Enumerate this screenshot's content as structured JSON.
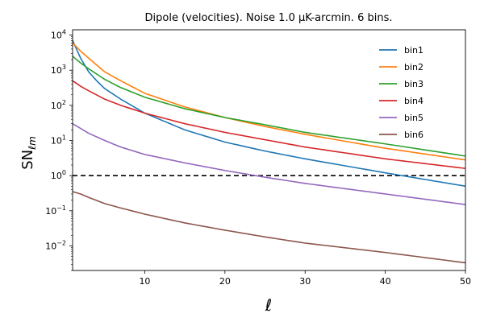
{
  "chart_data": {
    "type": "line",
    "title": "Dipole (velocities). Noise 1.0 μK-arcmin. 6 bins.",
    "xlabel": "ℓ",
    "ylabel": "SN",
    "ylabel_sub": "ℓm",
    "yscale": "log",
    "xlim": [
      1,
      50
    ],
    "ylim_exp": [
      -2.7,
      4.15
    ],
    "xticks": [
      10,
      20,
      30,
      40,
      50
    ],
    "xtick_labels": [
      "10",
      "20",
      "30",
      "40",
      "50"
    ],
    "yticks_exp": [
      -2,
      -1,
      0,
      1,
      2,
      3,
      4
    ],
    "ytick_labels": [
      {
        "base": "10",
        "exp": "−2"
      },
      {
        "base": "10",
        "exp": "−1"
      },
      {
        "base": "10",
        "exp": "0"
      },
      {
        "base": "10",
        "exp": "1"
      },
      {
        "base": "10",
        "exp": "2"
      },
      {
        "base": "10",
        "exp": "3"
      },
      {
        "base": "10",
        "exp": "4"
      }
    ],
    "reference_line": {
      "y": 1.0,
      "style": "dashed",
      "color": "#000000"
    },
    "legend_position": "top-right",
    "series": [
      {
        "name": "bin1",
        "color": "#1f77b4",
        "points": [
          [
            1,
            7000
          ],
          [
            2,
            2200
          ],
          [
            3,
            900
          ],
          [
            4,
            500
          ],
          [
            5,
            300
          ],
          [
            7,
            150
          ],
          [
            10,
            60
          ],
          [
            15,
            20
          ],
          [
            20,
            9
          ],
          [
            25,
            5
          ],
          [
            30,
            3
          ],
          [
            40,
            1.2
          ],
          [
            50,
            0.5
          ]
        ]
      },
      {
        "name": "bin2",
        "color": "#ff7f0e",
        "points": [
          [
            1,
            6000
          ],
          [
            2,
            3500
          ],
          [
            3,
            2200
          ],
          [
            5,
            900
          ],
          [
            7,
            500
          ],
          [
            10,
            220
          ],
          [
            15,
            90
          ],
          [
            20,
            45
          ],
          [
            25,
            25
          ],
          [
            30,
            15
          ],
          [
            40,
            6
          ],
          [
            50,
            2.8
          ]
        ]
      },
      {
        "name": "bin3",
        "color": "#2ca02c",
        "points": [
          [
            1,
            2500
          ],
          [
            2,
            1600
          ],
          [
            3,
            1100
          ],
          [
            5,
            550
          ],
          [
            7,
            320
          ],
          [
            10,
            170
          ],
          [
            15,
            80
          ],
          [
            20,
            45
          ],
          [
            25,
            28
          ],
          [
            30,
            17
          ],
          [
            40,
            8
          ],
          [
            50,
            3.6
          ]
        ]
      },
      {
        "name": "bin4",
        "color": "#d62728",
        "points": [
          [
            1,
            500
          ],
          [
            2,
            350
          ],
          [
            3,
            260
          ],
          [
            5,
            150
          ],
          [
            7,
            100
          ],
          [
            10,
            60
          ],
          [
            15,
            30
          ],
          [
            20,
            17
          ],
          [
            25,
            10.5
          ],
          [
            30,
            6.5
          ],
          [
            40,
            3
          ],
          [
            50,
            1.6
          ]
        ]
      },
      {
        "name": "bin5",
        "color": "#9467bd",
        "points": [
          [
            1,
            30
          ],
          [
            2,
            22
          ],
          [
            3,
            16
          ],
          [
            5,
            10
          ],
          [
            7,
            6.5
          ],
          [
            10,
            4
          ],
          [
            15,
            2.3
          ],
          [
            20,
            1.4
          ],
          [
            25,
            0.9
          ],
          [
            30,
            0.6
          ],
          [
            40,
            0.3
          ],
          [
            50,
            0.15
          ]
        ]
      },
      {
        "name": "bin6",
        "color": "#8c564b",
        "points": [
          [
            1,
            0.35
          ],
          [
            2,
            0.3
          ],
          [
            3,
            0.24
          ],
          [
            5,
            0.16
          ],
          [
            7,
            0.12
          ],
          [
            10,
            0.08
          ],
          [
            15,
            0.045
          ],
          [
            20,
            0.028
          ],
          [
            25,
            0.018
          ],
          [
            30,
            0.012
          ],
          [
            40,
            0.0065
          ],
          [
            50,
            0.0033
          ]
        ]
      }
    ]
  }
}
